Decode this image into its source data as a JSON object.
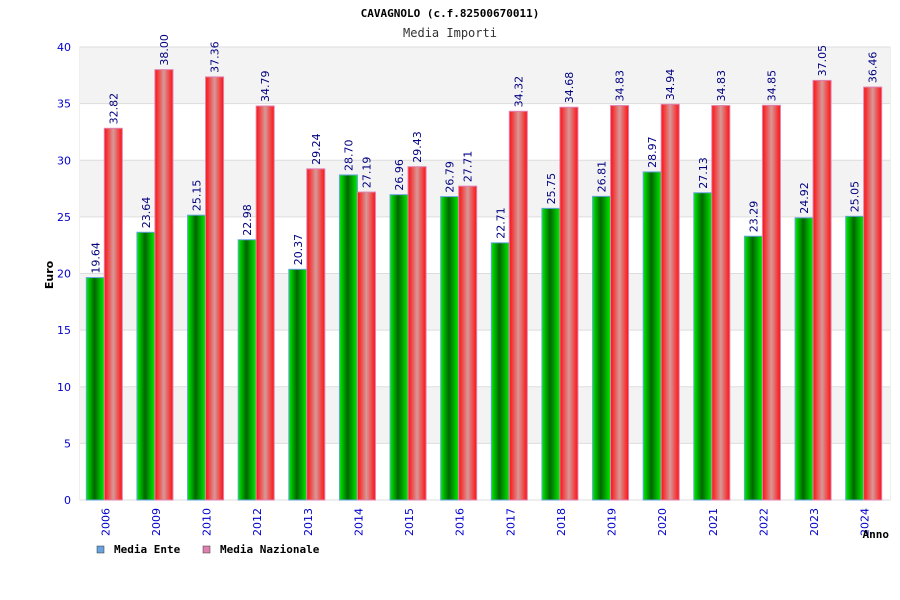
{
  "chart_data": {
    "type": "bar",
    "title": "CAVAGNOLO (c.f.82500670011)",
    "subtitle": "Media Importi",
    "xlabel": "Anno",
    "ylabel": "Euro",
    "ylim": [
      0,
      40
    ],
    "yticks": [
      "0",
      "5",
      "10",
      "15",
      "20",
      "25",
      "30",
      "35",
      "40"
    ],
    "grid": true,
    "legend_position": "bottom-left",
    "categories": [
      "2006",
      "2009",
      "2010",
      "2012",
      "2013",
      "2014",
      "2015",
      "2016",
      "2017",
      "2018",
      "2019",
      "2020",
      "2021",
      "2022",
      "2023",
      "2024"
    ],
    "series": [
      {
        "name": "Media Ente",
        "color": "#00cc00",
        "legend_color": "#66a3e0",
        "values": [
          19.64,
          23.64,
          25.15,
          22.98,
          20.37,
          28.7,
          26.96,
          26.79,
          22.71,
          25.75,
          26.81,
          28.97,
          27.13,
          23.29,
          24.92,
          25.05
        ],
        "labels": [
          "19.64",
          "23.64",
          "25.15",
          "22.98",
          "20.37",
          "28.70",
          "26.96",
          "26.79",
          "22.71",
          "25.75",
          "26.81",
          "28.97",
          "27.13",
          "23.29",
          "24.92",
          "25.05"
        ]
      },
      {
        "name": "Media Nazionale",
        "color": "#ff0000",
        "legend_color": "#e080b0",
        "values": [
          32.82,
          38.0,
          37.36,
          34.79,
          29.24,
          27.19,
          29.43,
          27.71,
          34.32,
          34.68,
          34.83,
          34.94,
          34.83,
          34.85,
          37.05,
          36.46
        ],
        "labels": [
          "32.82",
          "38.00",
          "37.36",
          "34.79",
          "29.24",
          "27.19",
          "29.43",
          "27.71",
          "34.32",
          "34.68",
          "34.83",
          "34.94",
          "34.83",
          "34.85",
          "37.05",
          "36.46"
        ]
      }
    ]
  }
}
